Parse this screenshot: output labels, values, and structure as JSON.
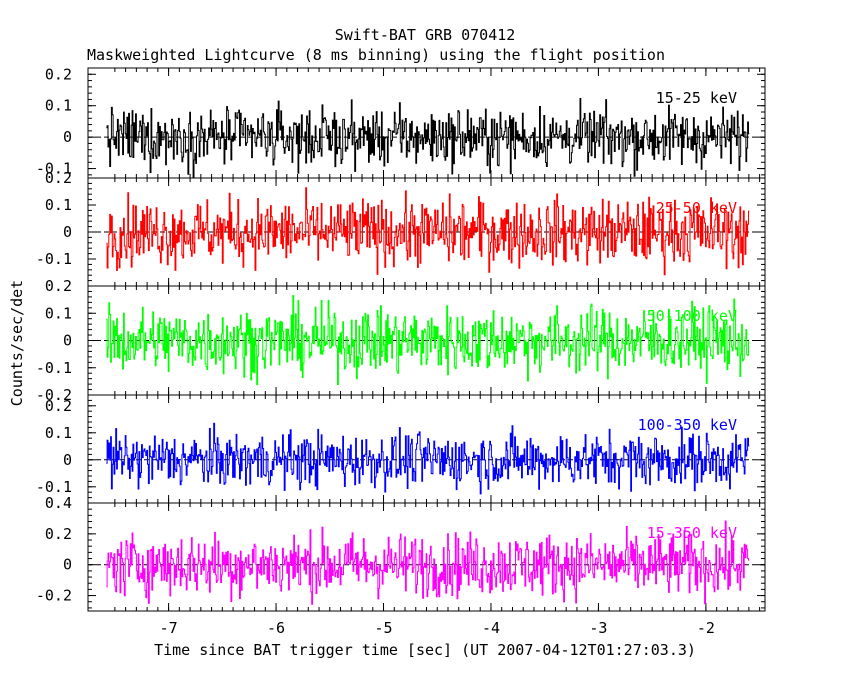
{
  "chart_data": {
    "type": "line",
    "title": "Swift-BAT GRB 070412",
    "subtitle": "Maskweighted Lightcurve (8 ms binning) using the flight position",
    "xlabel": "Time since BAT trigger time [sec] (UT 2007-04-12T01:27:03.3)",
    "ylabel": "Counts/sec/det",
    "xlim": [
      -7.75,
      -1.45
    ],
    "x_ticks": [
      "-7",
      "-6",
      "-5",
      "-4",
      "-3",
      "-2"
    ],
    "x_range_data": [
      -7.58,
      -1.6
    ],
    "bin_width": 0.008,
    "grid": false,
    "panels": [
      {
        "band": "15-25 keV",
        "color": "#000000",
        "ylim": [
          -0.13,
          0.22
        ],
        "y_ticks": [
          "-0.1",
          "0",
          "0.1",
          "0.2"
        ],
        "noise_amplitude": 0.045
      },
      {
        "band": "25-50 keV",
        "color": "#ff0000",
        "ylim": [
          -0.2,
          0.2
        ],
        "y_ticks": [
          "-0.1",
          "0",
          "0.1",
          "0.2"
        ],
        "noise_amplitude": 0.06
      },
      {
        "band": "50-100 keV",
        "color": "#00ff00",
        "ylim": [
          -0.2,
          0.2
        ],
        "y_ticks": [
          "-0.2",
          "-0.1",
          "0",
          "0.1",
          "0.2"
        ],
        "noise_amplitude": 0.06
      },
      {
        "band": "100-350 keV",
        "color": "#0000ff",
        "ylim": [
          -0.16,
          0.24
        ],
        "y_ticks": [
          "-0.1",
          "0",
          "0.1",
          "0.2"
        ],
        "noise_amplitude": 0.05
      },
      {
        "band": "15-350 keV",
        "color": "#ff00ff",
        "ylim": [
          -0.3,
          0.4
        ],
        "y_ticks": [
          "-0.2",
          "0",
          "0.2",
          "0.4"
        ],
        "noise_amplitude": 0.1
      }
    ]
  }
}
